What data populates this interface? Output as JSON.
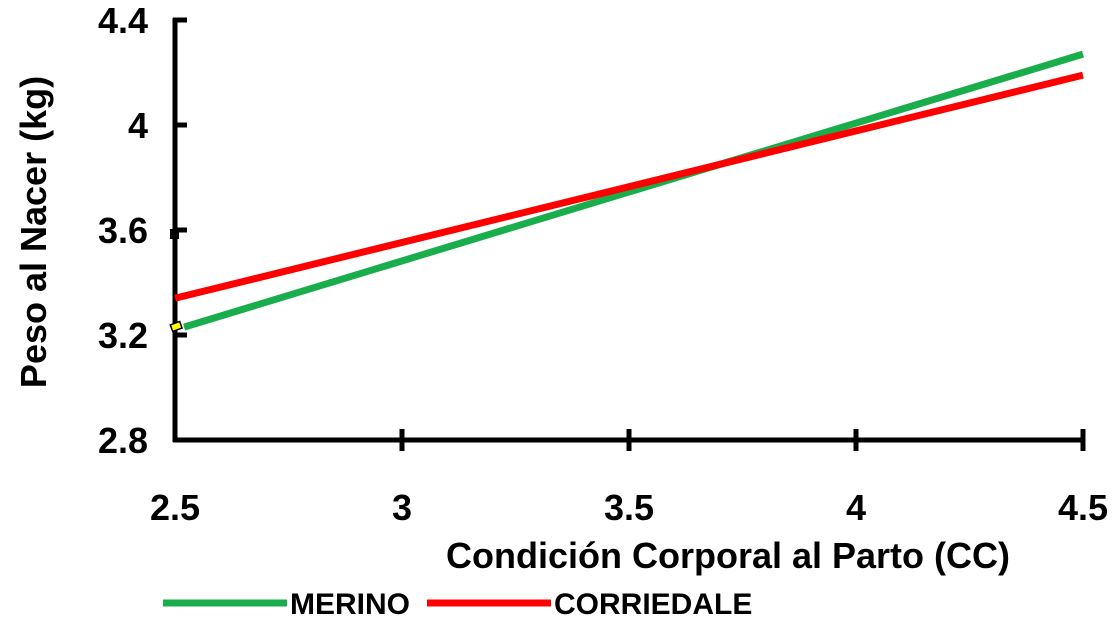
{
  "chart_data": {
    "type": "line",
    "xlabel": "Condición Corporal al Parto (CC)",
    "ylabel": "Peso al Nacer (kg)",
    "xlim": [
      2.5,
      4.5
    ],
    "ylim": [
      2.8,
      4.4
    ],
    "x_ticks": [
      "2.5",
      "3",
      "3.5",
      "4",
      "4.5"
    ],
    "y_ticks": [
      "2.8",
      "3.2",
      "3.6",
      "4",
      "4.4"
    ],
    "grid": false,
    "legend_position": "bottom",
    "series": [
      {
        "name": "MERINO",
        "color": "#1aad4b",
        "x": [
          2.52,
          4.5
        ],
        "y": [
          3.23,
          4.27
        ]
      },
      {
        "name": "CORRIEDALE",
        "color": "#ff0000",
        "x": [
          2.5,
          4.5
        ],
        "y": [
          3.34,
          4.19
        ]
      }
    ]
  }
}
